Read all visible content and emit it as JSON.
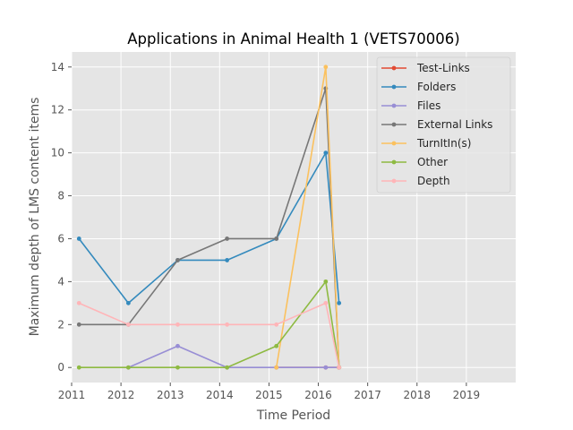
{
  "chart_data": {
    "type": "line",
    "title": "Applications in Animal Health 1 (VETS70006)",
    "xlabel": "Time Period",
    "ylabel": "Maximum depth of LMS content items",
    "xlim": [
      2011,
      2020
    ],
    "ylim": [
      -0.7,
      14.7
    ],
    "xticks": [
      "2011",
      "2012",
      "2013",
      "2014",
      "2015",
      "2016",
      "2017",
      "2018",
      "2019"
    ],
    "yticks": [
      "0",
      "2",
      "4",
      "6",
      "8",
      "10",
      "12",
      "14"
    ],
    "grid": true,
    "legend_position": "top-right",
    "series": [
      {
        "name": "Test-Links",
        "color": "#E24A33",
        "points": [
          [
            2015.15,
            0
          ],
          [
            2016.15,
            0
          ],
          [
            2016.42,
            0
          ]
        ]
      },
      {
        "name": "Folders",
        "color": "#348ABD",
        "points": [
          [
            2011.15,
            6
          ],
          [
            2012.15,
            3
          ],
          [
            2013.15,
            5
          ],
          [
            2014.15,
            5
          ],
          [
            2015.15,
            6
          ],
          [
            2016.15,
            10
          ],
          [
            2016.42,
            3
          ]
        ]
      },
      {
        "name": "Files",
        "color": "#988ED5",
        "points": [
          [
            2012.15,
            0
          ],
          [
            2013.15,
            1
          ],
          [
            2014.15,
            0
          ],
          [
            2015.15,
            0
          ],
          [
            2016.15,
            0
          ],
          [
            2016.42,
            0
          ]
        ]
      },
      {
        "name": "External Links",
        "color": "#777777",
        "points": [
          [
            2011.15,
            2
          ],
          [
            2012.15,
            2
          ],
          [
            2013.15,
            5
          ],
          [
            2014.15,
            6
          ],
          [
            2015.15,
            6
          ],
          [
            2016.15,
            13
          ],
          [
            2016.42,
            0
          ]
        ]
      },
      {
        "name": "TurnItIn(s)",
        "color": "#FBC15E",
        "points": [
          [
            2015.15,
            0
          ],
          [
            2016.15,
            14
          ],
          [
            2016.42,
            0
          ]
        ]
      },
      {
        "name": "Other",
        "color": "#8EBA42",
        "points": [
          [
            2011.15,
            0
          ],
          [
            2012.15,
            0
          ],
          [
            2013.15,
            0
          ],
          [
            2014.15,
            0
          ],
          [
            2015.15,
            1
          ],
          [
            2016.15,
            4
          ],
          [
            2016.42,
            0
          ]
        ]
      },
      {
        "name": "Depth",
        "color": "#FFB5B8",
        "points": [
          [
            2011.15,
            3
          ],
          [
            2012.15,
            2
          ],
          [
            2013.15,
            2
          ],
          [
            2014.15,
            2
          ],
          [
            2015.15,
            2
          ],
          [
            2016.15,
            3
          ],
          [
            2016.42,
            0
          ]
        ]
      }
    ]
  }
}
